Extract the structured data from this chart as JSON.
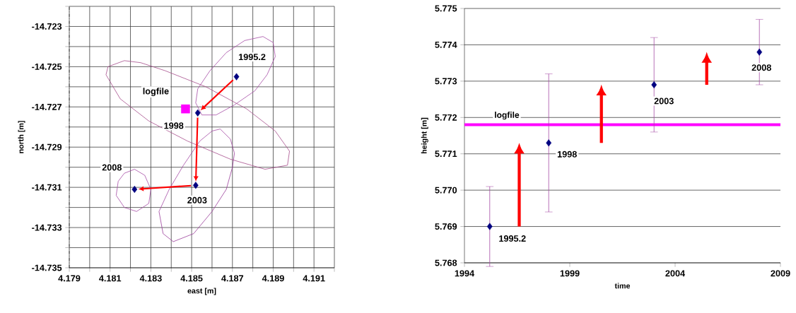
{
  "chart_data": [
    {
      "type": "scatter",
      "xlabel": "east [m]",
      "ylabel": "north [m]",
      "xlim": [
        4.179,
        4.192
      ],
      "ylim": [
        -14.735,
        -14.722
      ],
      "xticks": [
        4.179,
        {
          "value": 4.18,
          "label": null
        },
        4.181,
        {
          "value": 4.182,
          "label": null
        },
        4.183,
        {
          "value": 4.184,
          "label": null
        },
        4.185,
        {
          "value": 4.186,
          "label": null
        },
        4.187,
        {
          "value": 4.188,
          "label": null
        },
        4.189,
        {
          "value": 4.19,
          "label": null
        },
        4.191,
        {
          "value": 4.192,
          "label": null
        }
      ],
      "yticks": [
        -14.735,
        {
          "value": -14.734,
          "label": null
        },
        -14.733,
        {
          "value": -14.732,
          "label": null
        },
        -14.731,
        {
          "value": -14.73,
          "label": null
        },
        -14.729,
        {
          "value": -14.728,
          "label": null
        },
        -14.727,
        {
          "value": -14.726,
          "label": null
        },
        -14.725,
        {
          "value": -14.724,
          "label": null
        },
        -14.723,
        {
          "value": -14.722,
          "label": null
        }
      ],
      "grid": true,
      "series": [
        {
          "type": "line",
          "color": "#a64ca6",
          "x": [
            4.1852,
            4.1853,
            4.1859,
            4.1867,
            4.1876,
            4.1885,
            4.189,
            4.1891
          ],
          "values": [
            -14.7268,
            -14.7261,
            -14.7252,
            -14.7243,
            -14.7237,
            -14.7235,
            -14.7238,
            -14.7245
          ]
        },
        {
          "type": "line",
          "color": "#a64ca6",
          "x": [
            4.1852,
            4.1855,
            4.1862,
            4.1871,
            4.1881,
            4.1887,
            4.1891
          ],
          "values": [
            -14.7268,
            -14.7274,
            -14.7274,
            -14.7269,
            -14.7262,
            -14.7254,
            -14.7245
          ]
        },
        {
          "type": "line",
          "color": "#a64c8c",
          "x": [
            4.1808,
            4.1809,
            4.1817,
            4.1825,
            4.1837,
            4.1857,
            4.1877,
            4.1891,
            4.1898
          ],
          "values": [
            -14.7254,
            -14.725,
            -14.7247,
            -14.7248,
            -14.7252,
            -14.726,
            -14.7271,
            -14.7282,
            -14.7292
          ]
        },
        {
          "type": "line",
          "color": "#a64c8c",
          "x": [
            4.1808,
            4.1815,
            4.1829,
            4.1848,
            4.1869,
            4.1886,
            4.1897,
            4.1898
          ],
          "values": [
            -14.7254,
            -14.7266,
            -14.7277,
            -14.7287,
            -14.7296,
            -14.7301,
            -14.7299,
            -14.7292
          ]
        },
        {
          "type": "line",
          "color": "#a64ca6",
          "x": [
            4.1834,
            4.1839,
            4.1846,
            4.1854,
            4.186,
            4.1864,
            4.1869,
            4.1871
          ],
          "values": [
            -14.7322,
            -14.7311,
            -14.7299,
            -14.7287,
            -14.7282,
            -14.7281,
            -14.7286,
            -14.7293
          ]
        },
        {
          "type": "line",
          "color": "#9a3d9a",
          "x": [
            4.1834,
            4.1836,
            4.1841,
            4.1851,
            4.186,
            4.1867,
            4.187,
            4.1871
          ],
          "values": [
            -14.7322,
            -14.7333,
            -14.7337,
            -14.7333,
            -14.7322,
            -14.7311,
            -14.73,
            -14.7293
          ]
        },
        {
          "type": "line",
          "color": "#a64ca6",
          "x": [
            4.1813,
            4.1814,
            4.1817,
            4.1822,
            4.1827,
            4.183
          ],
          "values": [
            -14.7314,
            -14.7307,
            -14.7303,
            -14.7301,
            -14.7304,
            -14.7311
          ]
        },
        {
          "type": "line",
          "color": "#a64ca6",
          "x": [
            4.1813,
            4.1817,
            4.1823,
            4.1829,
            4.183
          ],
          "values": [
            -14.7314,
            -14.732,
            -14.7322,
            -14.7318,
            -14.7311
          ]
        },
        {
          "type": "scatter",
          "marker": "square",
          "color": "#ff00ff",
          "x": [
            4.1847
          ],
          "values": [
            -14.7271
          ]
        },
        {
          "type": "scatter",
          "marker": "diamond",
          "color": "#000080",
          "x": [
            4.1872,
            4.1853,
            4.1852,
            4.1822
          ],
          "values": [
            -14.7255,
            -14.7273,
            -14.7309,
            -14.7311
          ]
        }
      ],
      "annotations": [
        {
          "text": "1995.2",
          "x": 4.1872,
          "y": -14.7255
        },
        {
          "text": "1998",
          "x": 4.1853,
          "y": -14.7273
        },
        {
          "text": "2003",
          "x": 4.1852,
          "y": -14.7309
        },
        {
          "text": "2008",
          "x": 4.1822,
          "y": -14.7311
        },
        {
          "text": "logfile",
          "x": 4.1847,
          "y": -14.7271
        }
      ]
    },
    {
      "type": "scatter",
      "xlabel": "time",
      "ylabel": "height [m]",
      "xlim": [
        1994,
        2009
      ],
      "ylim": [
        5.768,
        5.775
      ],
      "xticks": [
        1994,
        1999,
        2004,
        2009
      ],
      "yticks": [
        {
          "value": 5.768,
          "label": "5.768"
        },
        {
          "value": 5.769,
          "label": "5.769"
        },
        {
          "value": 5.77,
          "label": "5.770"
        },
        {
          "value": 5.771,
          "label": "5.771"
        },
        {
          "value": 5.772,
          "label": "5.772"
        },
        {
          "value": 5.773,
          "label": "5.773"
        },
        {
          "value": 5.774,
          "label": "5.774"
        },
        {
          "value": 5.775,
          "label": "5.775"
        }
      ],
      "grid": "y",
      "series": [
        {
          "type": "scatter",
          "marker": "diamond",
          "color": "#000080",
          "x": [
            1995.2,
            1998.0,
            2003.0,
            2008.0
          ],
          "values": [
            5.769,
            5.7713,
            5.7729,
            5.7738
          ],
          "errors": [
            0.0011,
            0.0019,
            0.0013,
            0.0009
          ]
        }
      ],
      "ref_lines": [
        {
          "axis": "y",
          "value": 5.7718,
          "label": "logfile",
          "color": "#ff00ff"
        }
      ],
      "annotations": [
        {
          "text": "1995.2",
          "x": 1995.2,
          "y": 5.769
        },
        {
          "text": "1998",
          "x": 1998.0,
          "y": 5.7713
        },
        {
          "text": "2003",
          "x": 2003.0,
          "y": 5.7729
        },
        {
          "text": "2008",
          "x": 2008.0,
          "y": 5.7738
        }
      ]
    }
  ]
}
